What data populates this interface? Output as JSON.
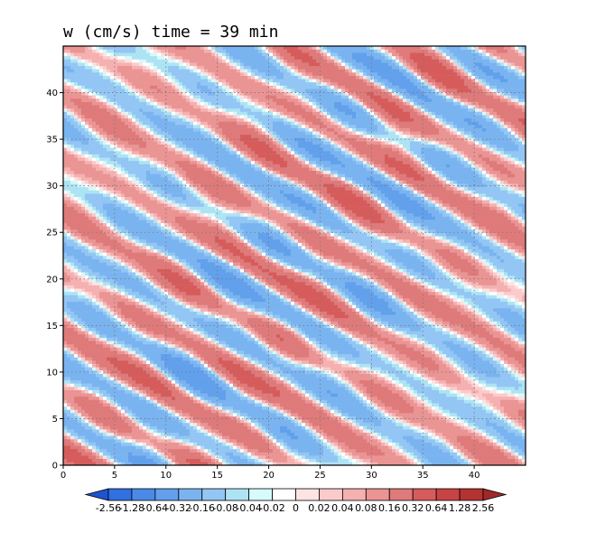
{
  "chart_data": {
    "type": "heatmap",
    "title": "w (cm/s)  time = 39 min",
    "xlabel": "",
    "ylabel": "",
    "xlim": [
      0,
      45
    ],
    "ylim": [
      0,
      45
    ],
    "x_ticks": [
      0,
      5,
      10,
      15,
      20,
      25,
      30,
      35,
      40
    ],
    "y_ticks": [
      0,
      5,
      10,
      15,
      20,
      25,
      30,
      35,
      40
    ],
    "grid": true,
    "colorbar": {
      "orientation": "horizontal",
      "placement": "bottom",
      "labels": [
        "-2.56",
        "-1.28",
        "-0.64",
        "-0.32",
        "-0.16",
        "-0.08",
        "-0.04",
        "-0.02",
        "0",
        "0.02",
        "0.04",
        "0.08",
        "0.16",
        "0.32",
        "0.64",
        "1.28",
        "2.56"
      ],
      "colors": [
        "#1f54cf",
        "#3070e0",
        "#4a8ae6",
        "#62a0ec",
        "#7ab4f0",
        "#93c6f4",
        "#aee3f4",
        "#d7fafa",
        "#ffffff",
        "#fde3e3",
        "#fbcbcb",
        "#f5b0b0",
        "#ea9494",
        "#df7a7a",
        "#d65c5c",
        "#c84444",
        "#b43232",
        "#a02828"
      ]
    },
    "field": {
      "description": "vertical velocity w in diagonal bands running from upper-left to lower-right, alternating positive (red) and negative (blue)",
      "band_orientation": "upper-left to lower-right",
      "typical_amplitude_range": [
        -0.32,
        0.32
      ]
    }
  }
}
